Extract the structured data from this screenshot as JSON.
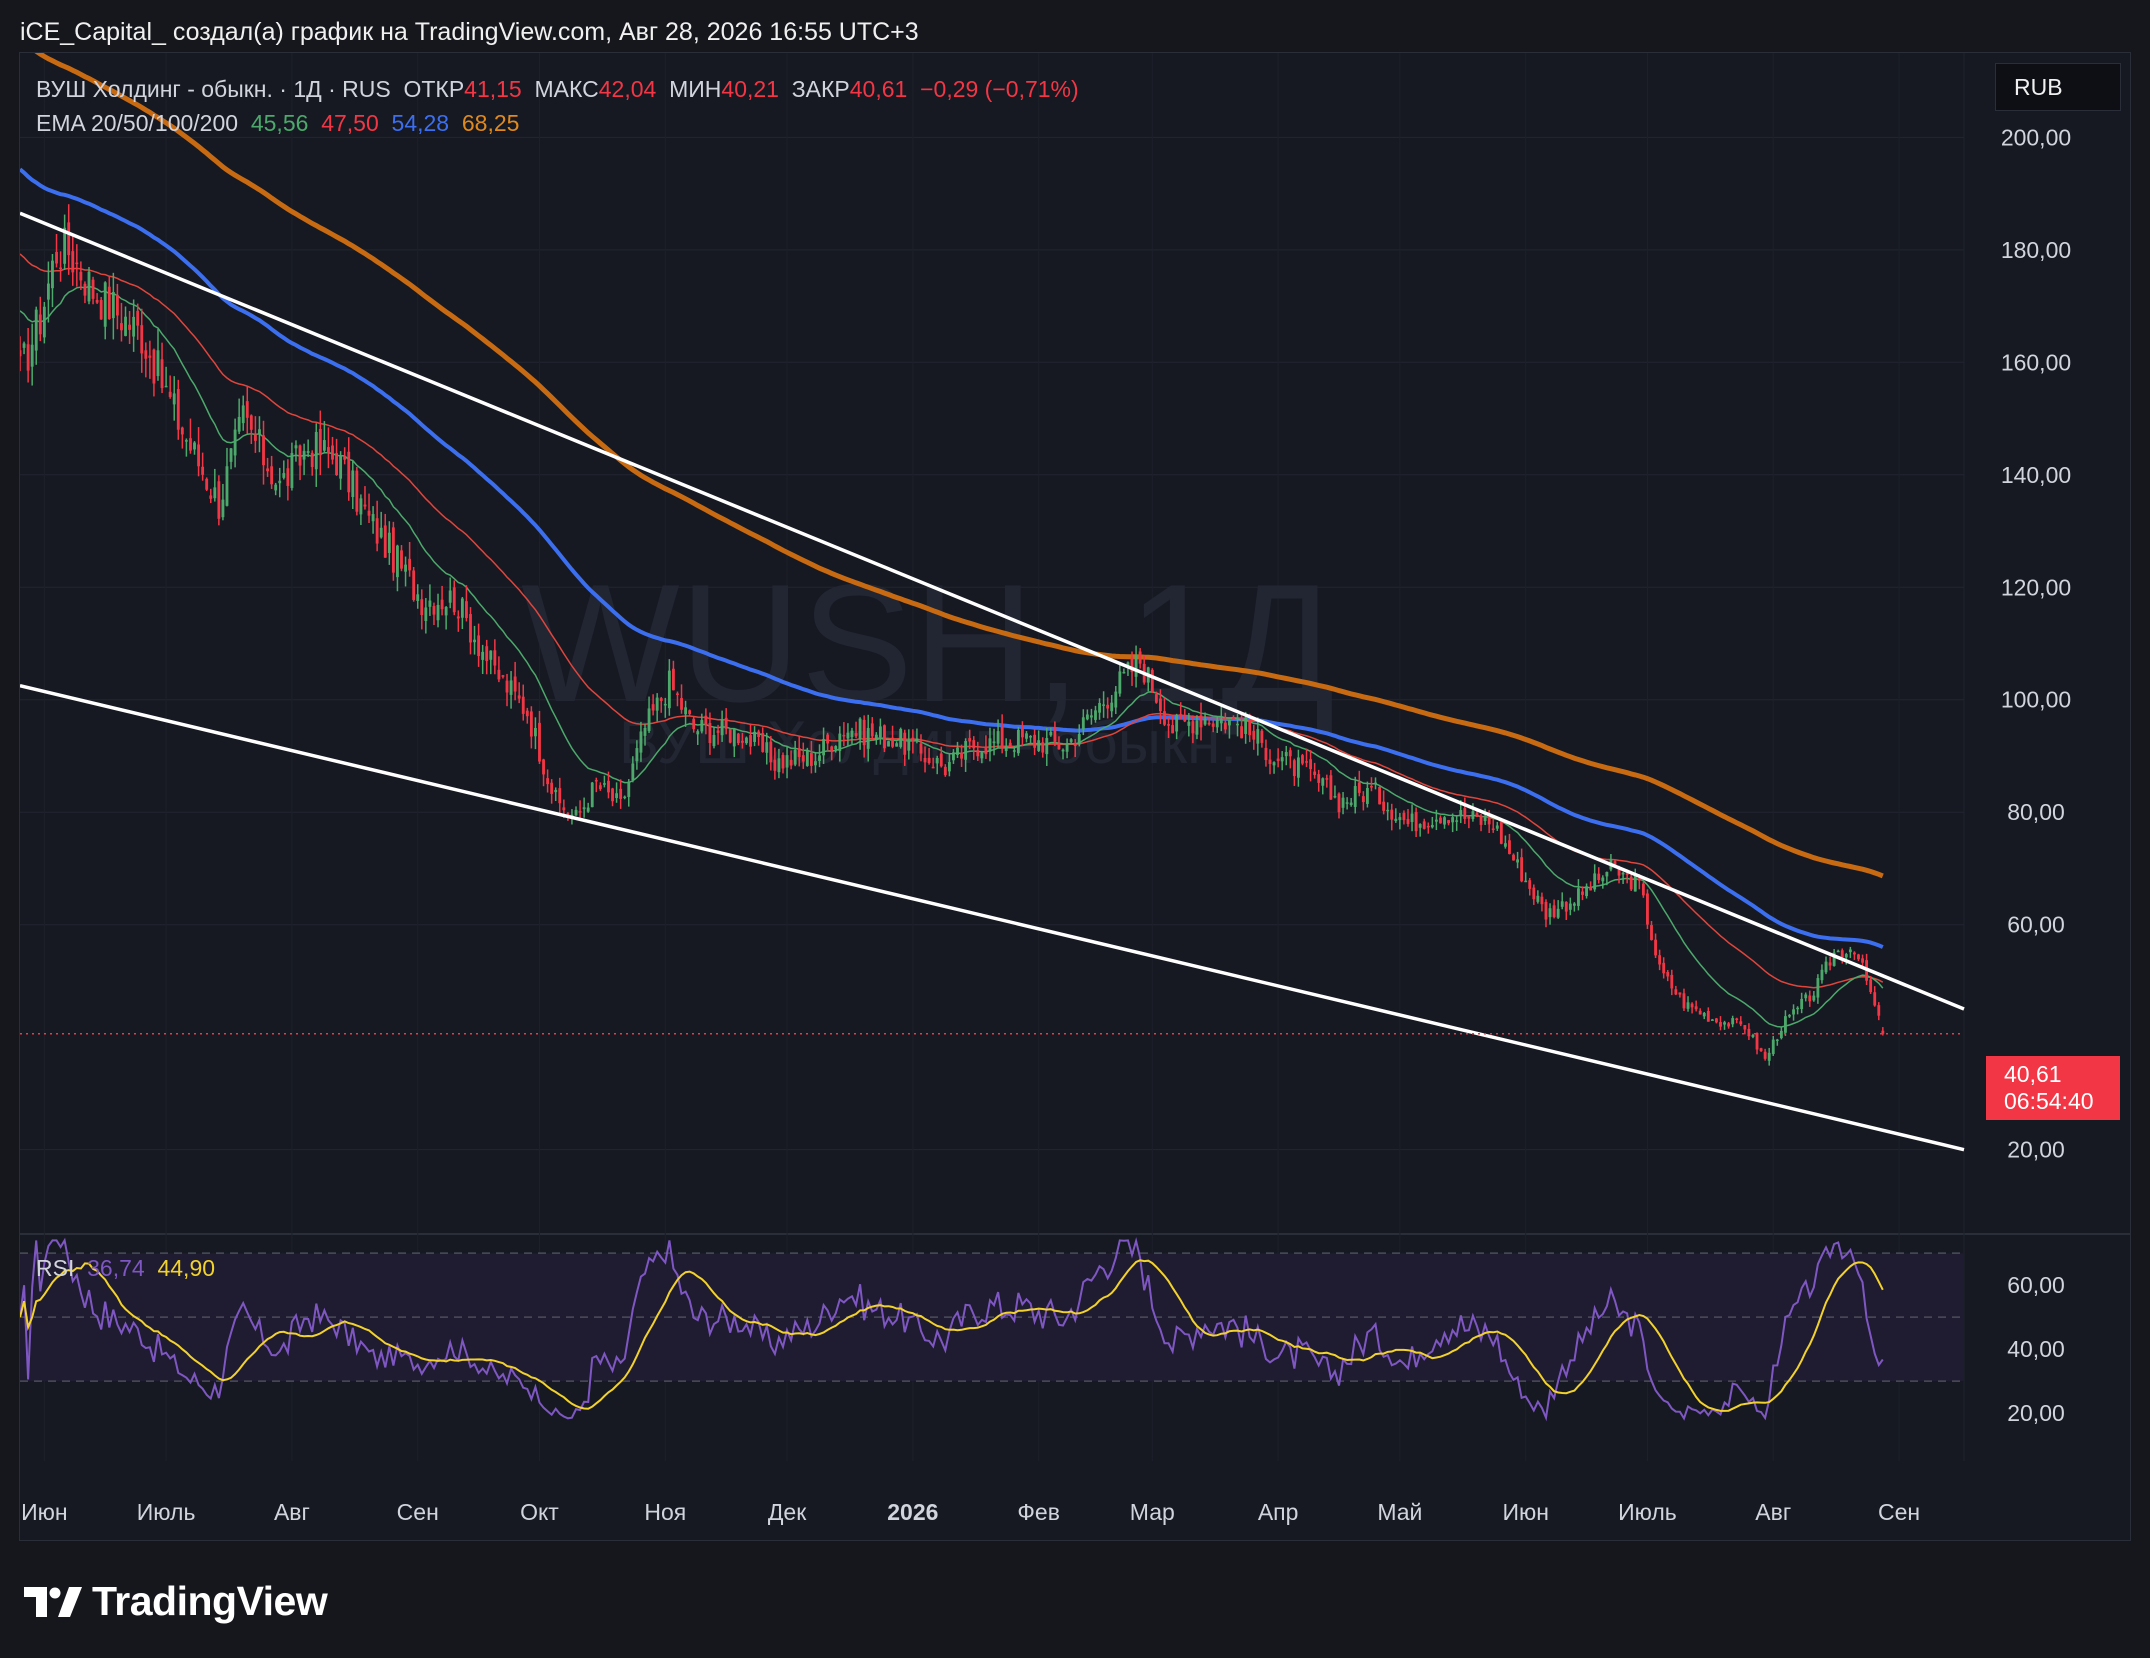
{
  "header": {
    "attribution": "iCE_Capital_ создал(а) график на TradingView.com, Авг 28, 2026 16:55 UTC+3"
  },
  "legend": {
    "instrument": "ВУШ Холдинг - обыкн. · 1Д · RUS",
    "open_label": "ОТКР",
    "open_value": "41,15",
    "high_label": "МАКС",
    "high_value": "42,04",
    "low_label": "МИН",
    "low_value": "40,21",
    "close_label": "ЗАКР",
    "close_value": "40,61",
    "change": "−0,29 (−0,71%)",
    "ema_label": "EMA 20/50/100/200",
    "ema20": "45,56",
    "ema50": "47,50",
    "ema100": "54,28",
    "ema200": "68,25"
  },
  "currency_button": "RUB",
  "rsi_legend": {
    "label": "RSI",
    "value": "36,74",
    "ma_value": "44,90"
  },
  "price_tag": {
    "price": "40,61",
    "countdown": "06:54:40"
  },
  "watermark": {
    "title": "WUSH, 1Д",
    "subtitle": "ВУШ Холдинг - обыкн."
  },
  "logo": {
    "text": "TradingView"
  },
  "colors": {
    "up": "#4ca96b",
    "down": "#f23645",
    "ema20": "#4ca96b",
    "ema50": "#e0453c",
    "ema100": "#3c6ff0",
    "ema200": "#c86a12",
    "rsi": "#7e57c2",
    "rsi_ma": "#f2d22c"
  },
  "chart_data": [
    {
      "type": "candlestick",
      "title": "ВУШ Холдинг - обыкн. · 1Д · RUS",
      "x_axis_labels": [
        "Июн",
        "Июль",
        "Авг",
        "Сен",
        "Окт",
        "Ноя",
        "Дек",
        "2026",
        "Фев",
        "Мар",
        "Апр",
        "Май",
        "Июн",
        "Июль",
        "Авг",
        "Сен"
      ],
      "y_axis_labels": [
        "200,00",
        "180,00",
        "160,00",
        "140,00",
        "120,00",
        "100,00",
        "80,00",
        "60,00",
        "20,00"
      ],
      "ylim": [
        5,
        215
      ],
      "grid": true,
      "price_anchors": [
        {
          "date": "2025-05-26",
          "close": 158
        },
        {
          "date": "2025-05-31",
          "close": 168
        },
        {
          "date": "2025-06-04",
          "close": 180
        },
        {
          "date": "2025-06-07",
          "close": 180
        },
        {
          "date": "2025-06-13",
          "close": 173
        },
        {
          "date": "2025-06-25",
          "close": 165
        },
        {
          "date": "2025-07-05",
          "close": 148
        },
        {
          "date": "2025-07-14",
          "close": 135
        },
        {
          "date": "2025-07-20",
          "close": 150
        },
        {
          "date": "2025-07-29",
          "close": 138
        },
        {
          "date": "2025-08-05",
          "close": 145
        },
        {
          "date": "2025-08-12",
          "close": 143
        },
        {
          "date": "2025-08-20",
          "close": 132
        },
        {
          "date": "2025-09-02",
          "close": 118
        },
        {
          "date": "2025-09-10",
          "close": 118
        },
        {
          "date": "2025-09-20",
          "close": 105
        },
        {
          "date": "2025-09-28",
          "close": 98
        },
        {
          "date": "2025-10-05",
          "close": 82
        },
        {
          "date": "2025-10-10",
          "close": 79
        },
        {
          "date": "2025-10-15",
          "close": 85
        },
        {
          "date": "2025-10-21",
          "close": 81
        },
        {
          "date": "2025-10-27",
          "close": 95
        },
        {
          "date": "2025-11-02",
          "close": 103
        },
        {
          "date": "2025-11-08",
          "close": 95
        },
        {
          "date": "2025-11-20",
          "close": 94
        },
        {
          "date": "2025-11-28",
          "close": 89
        },
        {
          "date": "2025-12-08",
          "close": 90
        },
        {
          "date": "2025-12-15",
          "close": 95
        },
        {
          "date": "2025-12-28",
          "close": 93
        },
        {
          "date": "2026-01-09",
          "close": 88
        },
        {
          "date": "2026-01-16",
          "close": 92
        },
        {
          "date": "2026-01-28",
          "close": 93
        },
        {
          "date": "2026-02-08",
          "close": 92
        },
        {
          "date": "2026-02-17",
          "close": 100
        },
        {
          "date": "2026-02-26",
          "close": 107
        },
        {
          "date": "2026-03-06",
          "close": 95
        },
        {
          "date": "2026-03-13",
          "close": 97
        },
        {
          "date": "2026-03-22",
          "close": 96
        },
        {
          "date": "2026-03-31",
          "close": 90
        },
        {
          "date": "2026-04-08",
          "close": 87
        },
        {
          "date": "2026-04-16",
          "close": 82
        },
        {
          "date": "2026-04-24",
          "close": 84
        },
        {
          "date": "2026-05-03",
          "close": 78
        },
        {
          "date": "2026-05-12",
          "close": 80
        },
        {
          "date": "2026-05-24",
          "close": 78
        },
        {
          "date": "2026-06-01",
          "close": 68
        },
        {
          "date": "2026-06-06",
          "close": 62
        },
        {
          "date": "2026-06-14",
          "close": 65
        },
        {
          "date": "2026-06-22",
          "close": 70
        },
        {
          "date": "2026-06-29",
          "close": 67
        },
        {
          "date": "2026-07-04",
          "close": 52
        },
        {
          "date": "2026-07-10",
          "close": 46
        },
        {
          "date": "2026-07-18",
          "close": 43
        },
        {
          "date": "2026-07-25",
          "close": 42
        },
        {
          "date": "2026-07-30",
          "close": 36
        },
        {
          "date": "2026-08-03",
          "close": 42
        },
        {
          "date": "2026-08-11",
          "close": 48
        },
        {
          "date": "2026-08-16",
          "close": 55
        },
        {
          "date": "2026-08-21",
          "close": 56
        },
        {
          "date": "2026-08-24",
          "close": 50
        },
        {
          "date": "2026-08-28",
          "close": 40.61
        }
      ],
      "last_candle": {
        "open": 41.15,
        "high": 42.04,
        "low": 40.21,
        "close": 40.61
      },
      "annotations": [
        {
          "name": "EMA 20",
          "last_value": 45.56
        },
        {
          "name": "EMA 50",
          "last_value": 47.5
        },
        {
          "name": "EMA 100",
          "last_value": 54.28
        },
        {
          "name": "EMA 200",
          "last_value": 68.25
        }
      ],
      "trendlines": [
        {
          "from": {
            "date": "2025-05-26",
            "price": 186.5
          },
          "to": {
            "date": "2026-09-17",
            "price": 45
          }
        },
        {
          "from": {
            "date": "2025-05-26",
            "price": 102.5
          },
          "to": {
            "date": "2026-09-17",
            "price": 20
          }
        }
      ],
      "last_price_line": 40.61
    },
    {
      "type": "line",
      "title": "RSI",
      "y_axis_labels": [
        "60,00",
        "40,00",
        "20,00"
      ],
      "ylim": [
        5,
        76
      ],
      "bands": [
        70,
        50,
        30
      ],
      "series": [
        {
          "name": "RSI",
          "last_value": 36.74
        },
        {
          "name": "RSI MA",
          "last_value": 44.9
        }
      ]
    }
  ]
}
